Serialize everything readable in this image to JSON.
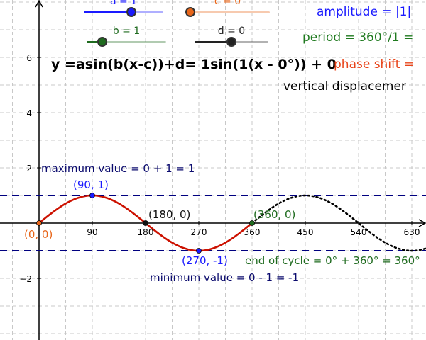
{
  "colors": {
    "a": "#1a1aff",
    "b": "#1f6b1f",
    "c": "#e8661a",
    "d": "#222222",
    "curve": "#cc1100",
    "dashed": "#000080",
    "grid": "#c8c8c8",
    "amplitude_text": "#1a1aff",
    "period_text": "#1f7a1f",
    "phase_text": "#e8441a"
  },
  "sliders": [
    {
      "key": "a",
      "label": "a = 1",
      "value": 1,
      "min": -5,
      "max": 5
    },
    {
      "key": "c",
      "label": "c = 0°",
      "value": 0,
      "min": 0,
      "max": 360
    },
    {
      "key": "b",
      "label": "b = 1",
      "value": 1,
      "min": 0,
      "max": 5
    },
    {
      "key": "d",
      "label": "d = 0",
      "value": 0,
      "min": -5,
      "max": 5
    }
  ],
  "equation": "y =asin(b(x-c))+d= 1sin(1(x - 0°)) + 0",
  "info": {
    "amplitude": "amplitude = |1|",
    "period": "period = 360°/1 =",
    "phase_shift": "phase shift =",
    "vertical": "vertical displacemer"
  },
  "annotations": {
    "maximum": "maximum value = 0 + 1 = 1",
    "minimum": "minimum value = 0 - 1 = -1",
    "end_cycle": "end of cycle = 0° + 360° = 360°"
  },
  "points": [
    {
      "label": "(0, 0)",
      "x": 0,
      "y": 0,
      "color": "#e8661a"
    },
    {
      "label": "(90, 1)",
      "x": 90,
      "y": 1,
      "color": "#1a1aff"
    },
    {
      "label": "(180, 0)",
      "x": 180,
      "y": 0,
      "color": "#111111"
    },
    {
      "label": "(270, -1)",
      "x": 270,
      "y": -1,
      "color": "#1a1aff"
    },
    {
      "label": "(360, 0)",
      "x": 360,
      "y": 0,
      "color": "#1f6b1f"
    }
  ],
  "chart_data": {
    "type": "line",
    "title": "",
    "xlabel": "",
    "ylabel": "",
    "x_ticks": [
      90,
      180,
      270,
      360,
      450,
      540,
      630
    ],
    "y_ticks": [
      -2,
      2,
      4,
      6
    ],
    "xlim": [
      -70,
      655
    ],
    "ylim": [
      -4.1,
      8.0
    ],
    "grid": true,
    "series": [
      {
        "function": "sin(x)",
        "x_range": [
          0,
          360
        ],
        "style": "solid"
      },
      {
        "function": "sin(x)",
        "x_range": [
          360,
          655
        ],
        "style": "dotted"
      }
    ],
    "reference_lines": [
      {
        "y": 1,
        "style": "dashed"
      },
      {
        "y": -1,
        "style": "dashed"
      }
    ]
  }
}
